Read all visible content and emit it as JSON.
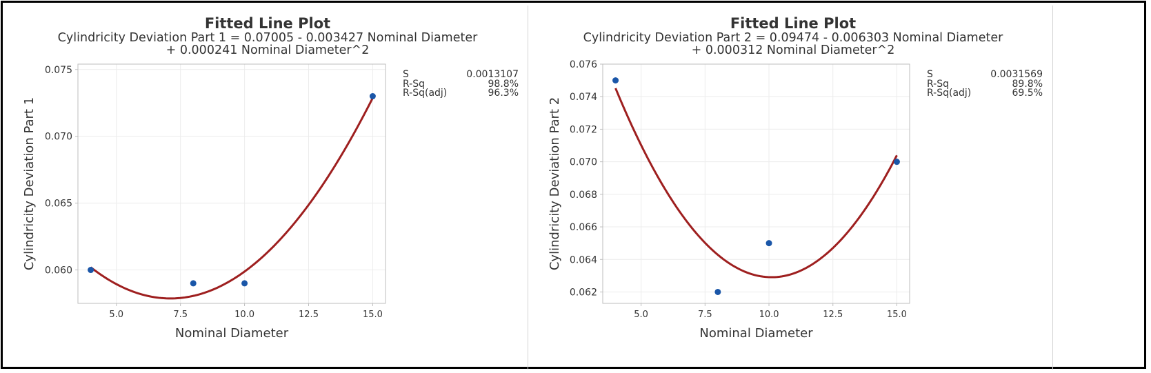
{
  "colors": {
    "point": "#1a56a8",
    "fit_line": "#9e1f1f",
    "grid": "#ececec",
    "axis": "#bdbdbd",
    "text": "#333333"
  },
  "chart_data": [
    {
      "type": "scatter",
      "title": "Fitted Line Plot",
      "subtitle_line1": "Cylindricity Deviation Part 1 = 0.07005 - 0.003427 Nominal Diameter",
      "subtitle_line2": "+ 0.000241 Nominal Diameter^2",
      "xlabel": "Nominal Diameter",
      "ylabel": "Cylindricity Deviation Part 1",
      "xlim": [
        3.5,
        15.5
      ],
      "ylim": [
        0.0575,
        0.0754
      ],
      "xticks": [
        5.0,
        7.5,
        10.0,
        12.5,
        15.0
      ],
      "xtick_labels": [
        "5.0",
        "7.5",
        "10.0",
        "12.5",
        "15.0"
      ],
      "yticks": [
        0.06,
        0.065,
        0.07,
        0.075
      ],
      "ytick_labels": [
        "0.060",
        "0.065",
        "0.070",
        "0.075"
      ],
      "grid": true,
      "points": [
        {
          "x": 4,
          "y": 0.06
        },
        {
          "x": 8,
          "y": 0.059
        },
        {
          "x": 10,
          "y": 0.059
        },
        {
          "x": 15,
          "y": 0.073
        }
      ],
      "fit": {
        "intercept": 0.07005,
        "linear": -0.003427,
        "quadratic": 0.000241,
        "x_range": [
          4,
          15
        ]
      },
      "stats": [
        {
          "label": "S",
          "value": "0.0013107"
        },
        {
          "label": "R-Sq",
          "value": "98.8%"
        },
        {
          "label": "R-Sq(adj)",
          "value": "96.3%"
        }
      ]
    },
    {
      "type": "scatter",
      "title": "Fitted Line Plot",
      "subtitle_line1": "Cylindricity Deviation Part 2 = 0.09474 - 0.006303 Nominal Diameter",
      "subtitle_line2": "+ 0.000312 Nominal Diameter^2",
      "xlabel": "Nominal Diameter",
      "ylabel": "Cylindricity Deviation Part 2",
      "xlim": [
        3.5,
        15.5
      ],
      "ylim": [
        0.0613,
        0.076
      ],
      "xticks": [
        5.0,
        7.5,
        10.0,
        12.5,
        15.0
      ],
      "xtick_labels": [
        "5.0",
        "7.5",
        "10.0",
        "12.5",
        "15.0"
      ],
      "yticks": [
        0.062,
        0.064,
        0.066,
        0.068,
        0.07,
        0.072,
        0.074,
        0.076
      ],
      "ytick_labels": [
        "0.062",
        "0.064",
        "0.066",
        "0.068",
        "0.070",
        "0.072",
        "0.074",
        "0.076"
      ],
      "grid": true,
      "points": [
        {
          "x": 4,
          "y": 0.075
        },
        {
          "x": 8,
          "y": 0.062
        },
        {
          "x": 10,
          "y": 0.065
        },
        {
          "x": 15,
          "y": 0.07
        }
      ],
      "fit": {
        "intercept": 0.09474,
        "linear": -0.006303,
        "quadratic": 0.000312,
        "x_range": [
          4,
          15
        ]
      },
      "stats": [
        {
          "label": "S",
          "value": "0.0031569"
        },
        {
          "label": "R-Sq",
          "value": "89.8%"
        },
        {
          "label": "R-Sq(adj)",
          "value": "69.5%"
        }
      ]
    }
  ]
}
